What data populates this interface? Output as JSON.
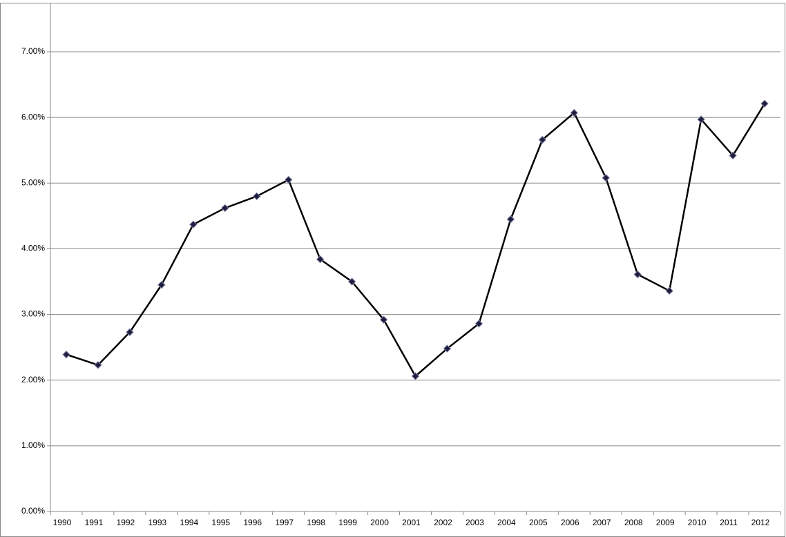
{
  "chart_data": {
    "type": "line",
    "categories": [
      "1990",
      "1991",
      "1992",
      "1993",
      "1994",
      "1995",
      "1996",
      "1997",
      "1998",
      "1999",
      "2000",
      "2001",
      "2002",
      "2003",
      "2004",
      "2005",
      "2006",
      "2007",
      "2008",
      "2009",
      "2010",
      "2011",
      "2012"
    ],
    "values": [
      2.39,
      2.23,
      2.73,
      3.45,
      4.37,
      4.62,
      4.8,
      5.05,
      3.84,
      3.5,
      2.92,
      2.06,
      2.48,
      2.86,
      4.45,
      5.66,
      6.07,
      5.08,
      3.61,
      3.36,
      5.97,
      5.42,
      6.21
    ],
    "color": "#000000",
    "marker_color": "#1f1f3d",
    "marker_edge_color": "#7f7fa8",
    "ylim": [
      0,
      7
    ],
    "yticks": [
      {
        "value": 0,
        "label": "0.00%"
      },
      {
        "value": 1,
        "label": "1.00%"
      },
      {
        "value": 2,
        "label": "2.00%"
      },
      {
        "value": 3,
        "label": "3.00%"
      },
      {
        "value": 4,
        "label": "4.00%"
      },
      {
        "value": 5,
        "label": "5.00%"
      },
      {
        "value": 6,
        "label": "6.00%"
      },
      {
        "value": 7,
        "label": "7.00%"
      }
    ],
    "grid": true
  }
}
